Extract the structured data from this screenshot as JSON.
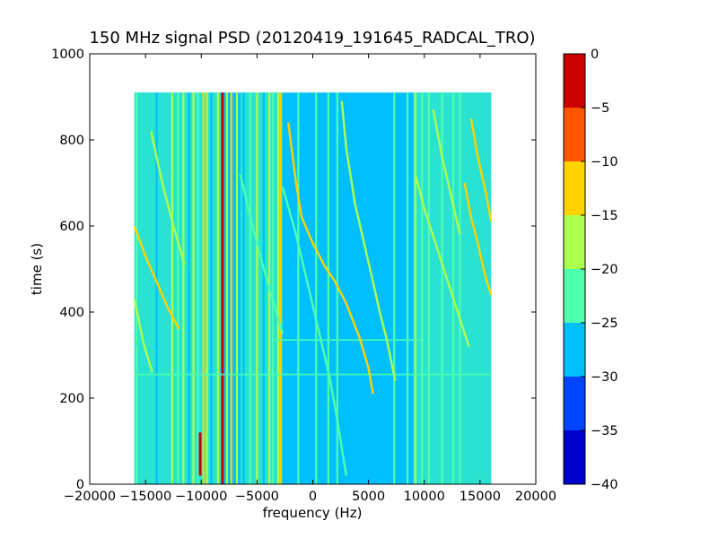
{
  "chart_data": {
    "type": "heatmap",
    "title": "150 MHz signal PSD (20120419_191645_RADCAL_TRO)",
    "xlabel": "frequency (Hz)",
    "ylabel": "time (s)",
    "xlim": [
      -20000,
      20000
    ],
    "ylim": [
      0,
      1000
    ],
    "xticks": [
      -20000,
      -15000,
      -10000,
      -5000,
      0,
      5000,
      10000,
      15000,
      20000
    ],
    "xtick_labels": [
      "−20000",
      "−15000",
      "−10000",
      "−5000",
      "0",
      "5000",
      "10000",
      "15000",
      "20000"
    ],
    "yticks": [
      0,
      200,
      400,
      600,
      800,
      1000
    ],
    "ytick_labels": [
      "0",
      "200",
      "400",
      "600",
      "800",
      "1000"
    ],
    "data_extent": {
      "x": [
        -16000,
        16000
      ],
      "y": [
        0,
        910
      ]
    },
    "background_level": -27.5,
    "grid": false,
    "colorbar": {
      "levels": [
        -40,
        -35,
        -30,
        -25,
        -20,
        -15,
        -10,
        -5,
        0
      ],
      "tick_labels": [
        "−40",
        "−35",
        "−30",
        "−25",
        "−20",
        "−15",
        "−10",
        "−5",
        "0"
      ],
      "colors": [
        "#0000cd",
        "#0044ff",
        "#00bfff",
        "#4dffad",
        "#adff4d",
        "#ffd200",
        "#ff5500",
        "#cd0000"
      ]
    },
    "band_regions": [
      {
        "x": [
          -16000,
          -8000
        ],
        "level": -22.5
      },
      {
        "x": [
          -6500,
          -2700
        ],
        "level": -22.5
      },
      {
        "x": [
          9000,
          16000
        ],
        "level": -22.5
      }
    ],
    "vertical_lines": [
      {
        "x": -15800,
        "level": -22.5
      },
      {
        "x": -14000,
        "level": -27.5
      },
      {
        "x": -12600,
        "level": -17.5
      },
      {
        "x": -12100,
        "level": -22.5
      },
      {
        "x": -11600,
        "level": -17.5
      },
      {
        "x": -11100,
        "level": -27.5
      },
      {
        "x": -10700,
        "level": -17.5
      },
      {
        "x": -10300,
        "level": -22.5
      },
      {
        "x": -9800,
        "level": -12.5
      },
      {
        "x": -9500,
        "level": -17.5
      },
      {
        "x": -9100,
        "level": -27.5
      },
      {
        "x": -8500,
        "level": -17.5
      },
      {
        "x": -8100,
        "level": -2.5
      },
      {
        "x": -7700,
        "level": -17.5
      },
      {
        "x": -7300,
        "level": -12.5
      },
      {
        "x": -6800,
        "level": -17.5
      },
      {
        "x": -6200,
        "level": -27.5
      },
      {
        "x": -5600,
        "level": -22.5
      },
      {
        "x": -5000,
        "level": -17.5
      },
      {
        "x": -4400,
        "level": -27.5
      },
      {
        "x": -3900,
        "level": -17.5
      },
      {
        "x": -3600,
        "level": -22.5
      },
      {
        "x": -3100,
        "level": -17.5
      },
      {
        "x": -2900,
        "level": -12.5
      },
      {
        "x": -1300,
        "level": -22.5
      },
      {
        "x": 300,
        "level": -22.5
      },
      {
        "x": 1400,
        "level": -22.5
      },
      {
        "x": 2200,
        "level": -22.5
      },
      {
        "x": 7300,
        "level": -22.5
      },
      {
        "x": 8500,
        "level": -22.5
      },
      {
        "x": 9200,
        "level": -17.5
      },
      {
        "x": 9800,
        "level": -22.5
      },
      {
        "x": 10400,
        "level": -22.5
      },
      {
        "x": 11600,
        "level": -22.5
      },
      {
        "x": 12600,
        "level": -22.5
      },
      {
        "x": 13200,
        "level": -22.5
      }
    ],
    "chirps": [
      {
        "level": -12.5,
        "points": [
          [
            -2200,
            840
          ],
          [
            -1500,
            700
          ],
          [
            -1000,
            620
          ],
          [
            0,
            560
          ],
          [
            1000,
            510
          ],
          [
            2000,
            470
          ],
          [
            3000,
            420
          ],
          [
            4200,
            340
          ],
          [
            5000,
            270
          ],
          [
            5400,
            210
          ]
        ]
      },
      {
        "level": -17.5,
        "points": [
          [
            2600,
            890
          ],
          [
            3000,
            780
          ],
          [
            3800,
            650
          ],
          [
            4600,
            560
          ],
          [
            5400,
            470
          ],
          [
            6000,
            400
          ],
          [
            6600,
            340
          ],
          [
            7400,
            240
          ]
        ]
      },
      {
        "level": -22.5,
        "points": [
          [
            -2700,
            690
          ],
          [
            -1500,
            580
          ],
          [
            -500,
            470
          ],
          [
            500,
            360
          ],
          [
            1500,
            250
          ],
          [
            2200,
            150
          ],
          [
            3000,
            20
          ]
        ]
      },
      {
        "level": -12.5,
        "points": [
          [
            13600,
            700
          ],
          [
            14200,
            620
          ],
          [
            14800,
            560
          ],
          [
            15500,
            480
          ],
          [
            16000,
            440
          ]
        ]
      },
      {
        "level": -12.5,
        "points": [
          [
            14200,
            850
          ],
          [
            14800,
            760
          ],
          [
            15500,
            680
          ],
          [
            16000,
            610
          ]
        ]
      },
      {
        "level": -17.5,
        "points": [
          [
            9200,
            720
          ],
          [
            10000,
            640
          ],
          [
            11000,
            560
          ],
          [
            12000,
            480
          ],
          [
            13000,
            400
          ],
          [
            14000,
            320
          ]
        ]
      },
      {
        "level": -17.5,
        "points": [
          [
            10800,
            870
          ],
          [
            11600,
            760
          ],
          [
            12400,
            670
          ],
          [
            13200,
            580
          ]
        ]
      },
      {
        "level": -12.5,
        "points": [
          [
            -16000,
            600
          ],
          [
            -15000,
            530
          ],
          [
            -14000,
            470
          ],
          [
            -13000,
            410
          ],
          [
            -12000,
            360
          ]
        ]
      },
      {
        "level": -17.5,
        "points": [
          [
            -16000,
            430
          ],
          [
            -15200,
            330
          ],
          [
            -14400,
            260
          ]
        ]
      },
      {
        "level": -17.5,
        "points": [
          [
            -14500,
            820
          ],
          [
            -13500,
            700
          ],
          [
            -12500,
            600
          ],
          [
            -11500,
            510
          ]
        ]
      },
      {
        "level": -22.5,
        "points": [
          [
            -6500,
            720
          ],
          [
            -5500,
            610
          ],
          [
            -4500,
            510
          ],
          [
            -3500,
            420
          ],
          [
            -2700,
            350
          ]
        ]
      }
    ],
    "horizontal_streaks": [
      {
        "y": 255,
        "x": [
          -16000,
          16000
        ],
        "level": -22.5
      },
      {
        "y": 335,
        "x": [
          -3500,
          10000
        ],
        "level": -22.5
      }
    ],
    "hot_segments": [
      {
        "x": -10100,
        "y": [
          20,
          120
        ],
        "level": -2.5
      }
    ]
  }
}
